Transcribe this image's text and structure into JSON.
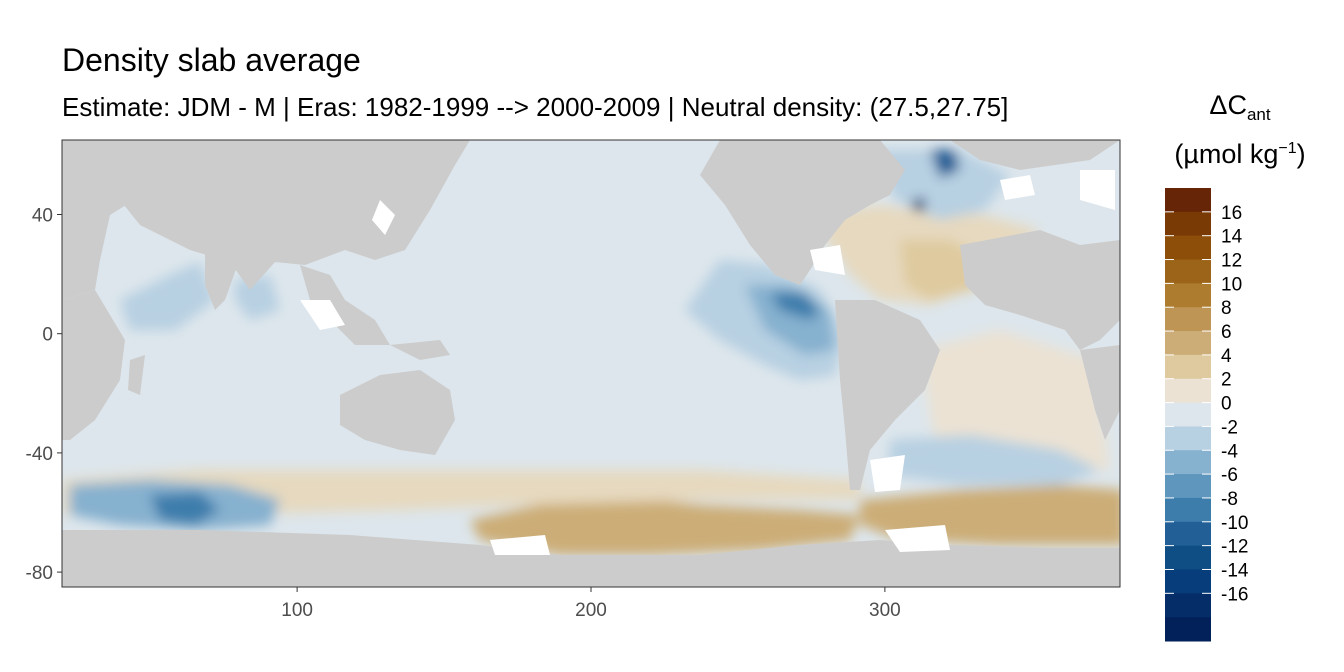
{
  "title": "Density slab average",
  "subtitle": "Estimate: JDM - M | Eras: 1982-1999 --> 2000-2009 | Neutral density: (27.5,27.75]",
  "chart_data": {
    "type": "heatmap",
    "title": "Density slab average",
    "subtitle": "Estimate: JDM - M | Eras: 1982-1999 --> 2000-2009 | Neutral density: (27.5,27.75]",
    "xlabel": "",
    "ylabel": "",
    "xlim": [
      20,
      380
    ],
    "ylim": [
      -85,
      65
    ],
    "x_ticks": [
      100,
      200,
      300
    ],
    "y_ticks": [
      40,
      0,
      -40,
      -80
    ],
    "grid": false,
    "land_color": "#cccccc",
    "nodata_color": "#ffffff",
    "legend": {
      "title_main": "ΔC",
      "title_sub": "ant",
      "units": "(µmol kg",
      "units_sup": "−1",
      "units_close": ")",
      "placement": "right",
      "labels": [
        "16",
        "14",
        "12",
        "10",
        "8",
        "6",
        "4",
        "2",
        "0",
        "-2",
        "-4",
        "-6",
        "-8",
        "-10",
        "-12",
        "-14",
        "-16"
      ],
      "colors": [
        "#662506",
        "#7a3a05",
        "#8c4e08",
        "#9c6418",
        "#ad7c2f",
        "#bf9556",
        "#ccad77",
        "#dfca9f",
        "#ebe2d3",
        "#dde6ec",
        "#b7d0e2",
        "#86b1cf",
        "#5e96bd",
        "#3d7dac",
        "#215f96",
        "#0f4d85",
        "#073d7a",
        "#052d68",
        "#02205a"
      ]
    },
    "regions": [
      {
        "name": "north-pacific",
        "value": -1.2
      },
      {
        "name": "equatorial-east-pacific",
        "value": -5.5
      },
      {
        "name": "east-pacific-core",
        "value": -9.5
      },
      {
        "name": "north-atlantic",
        "value": 1.6
      },
      {
        "name": "labrador-sea",
        "value": -14
      },
      {
        "name": "south-atlantic",
        "value": 0.8
      },
      {
        "name": "southern-ocean-atlantic-sector",
        "value": 4.5
      },
      {
        "name": "southern-ocean-pacific-sector",
        "value": 3.8
      },
      {
        "name": "southern-ocean-indian-sector",
        "value": -7.5
      },
      {
        "name": "arabian-sea",
        "value": -3.5
      },
      {
        "name": "indian-ocean",
        "value": -1
      }
    ]
  }
}
